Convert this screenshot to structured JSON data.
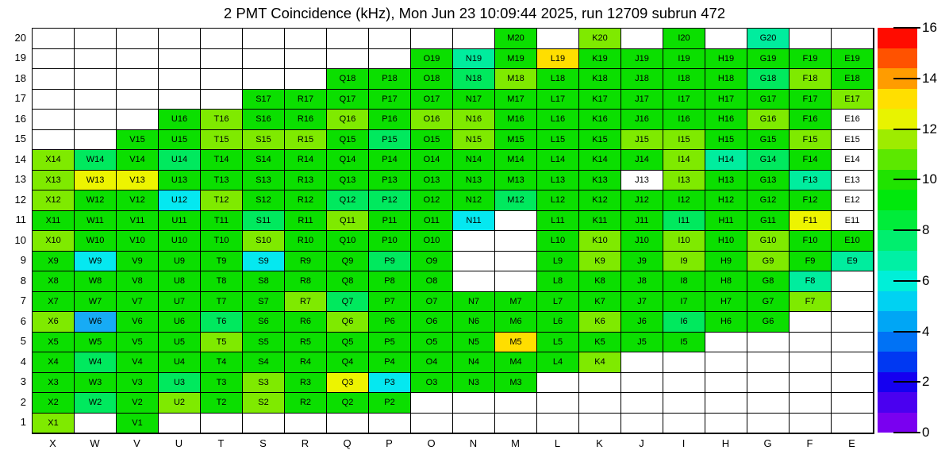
{
  "title": "2 PMT Coincidence (kHz), Mon Jun 23 10:09:44 2025, run 12709 subrun 472",
  "chart_data": {
    "type": "heatmap",
    "title": "2 PMT Coincidence (kHz), Mon Jun 23 10:09:44 2025, run 12709 subrun 472",
    "units": "kHz",
    "x_categories": [
      "X",
      "W",
      "V",
      "U",
      "T",
      "S",
      "R",
      "Q",
      "P",
      "O",
      "N",
      "M",
      "L",
      "K",
      "J",
      "I",
      "H",
      "G",
      "F",
      "E"
    ],
    "y_categories": [
      1,
      2,
      3,
      4,
      5,
      6,
      7,
      8,
      9,
      10,
      11,
      12,
      13,
      14,
      15,
      16,
      17,
      18,
      19,
      20
    ],
    "grid": "on",
    "colorbar": {
      "min": 0,
      "max": 16,
      "ticks": [
        0,
        2,
        4,
        6,
        8,
        10,
        12,
        14,
        16
      ],
      "position": "right",
      "palette_bottom_to_top": [
        "#7A00F0",
        "#4A00F0",
        "#1500F0",
        "#0038F2",
        "#0072F5",
        "#00A6F5",
        "#00D2F2",
        "#00EFD8",
        "#00F0A4",
        "#00EE6E",
        "#00EC3A",
        "#00E80C",
        "#20E300",
        "#5CE800",
        "#9EEC00",
        "#E8F300",
        "#FFDF00",
        "#FF9C00",
        "#FF5200",
        "#FF0C00"
      ]
    },
    "cell_classes": {
      "g": {
        "color": "#0BDF00",
        "approx_value": 9.4
      },
      "yg": {
        "color": "#7FEA00",
        "approx_value": 11.0
      },
      "sg": {
        "color": "#00E95E",
        "approx_value": 8.0
      },
      "mint": {
        "color": "#00ED9E",
        "approx_value": 7.0
      },
      "cy": {
        "color": "#05E8F0",
        "approx_value": 5.4
      },
      "bl": {
        "color": "#17ABF5",
        "approx_value": 4.4
      },
      "y": {
        "color": "#EDF400",
        "approx_value": 11.8
      },
      "gold": {
        "color": "#FFDE00",
        "approx_value": 12.6
      },
      "wl": {
        "color": "#FFFFFF",
        "approx_value": null
      }
    },
    "rows": {
      "20": {
        "M": "g",
        "K": "yg",
        "I": "g",
        "G": "mint"
      },
      "19": {
        "O": "g",
        "N": "mint",
        "M": "g",
        "L": "gold",
        "K": "g",
        "J": "g",
        "I": "g",
        "H": "g",
        "G": "g",
        "F": "g",
        "E": "g"
      },
      "18": {
        "Q": "g",
        "P": "g",
        "O": "g",
        "N": "sg",
        "M": "yg",
        "L": "g",
        "K": "g",
        "J": "g",
        "I": "g",
        "H": "g",
        "G": "sg",
        "F": "yg",
        "E": "g"
      },
      "17": {
        "S": "g",
        "R": "g",
        "Q": "g",
        "P": "g",
        "O": "g",
        "N": "g",
        "M": "g",
        "L": "g",
        "K": "g",
        "J": "g",
        "I": "g",
        "H": "g",
        "G": "g",
        "F": "g",
        "E": "yg"
      },
      "16": {
        "U": "g",
        "T": "yg",
        "S": "g",
        "R": "g",
        "Q": "yg",
        "P": "g",
        "O": "yg",
        "N": "yg",
        "M": "g",
        "L": "g",
        "K": "g",
        "J": "g",
        "I": "g",
        "H": "g",
        "G": "yg",
        "F": "g",
        "E": "wl"
      },
      "15": {
        "V": "g",
        "U": "g",
        "T": "yg",
        "S": "yg",
        "R": "yg",
        "Q": "g",
        "P": "sg",
        "O": "g",
        "N": "yg",
        "M": "g",
        "L": "g",
        "K": "g",
        "J": "yg",
        "I": "yg",
        "H": "g",
        "G": "g",
        "F": "yg",
        "E": "wl"
      },
      "14": {
        "X": "yg",
        "W": "sg",
        "V": "g",
        "U": "sg",
        "T": "g",
        "S": "g",
        "R": "g",
        "Q": "g",
        "P": "g",
        "O": "g",
        "N": "g",
        "M": "g",
        "L": "g",
        "K": "g",
        "J": "g",
        "I": "yg",
        "H": "mint",
        "G": "sg",
        "F": "g",
        "E": "wl"
      },
      "13": {
        "X": "yg",
        "W": "y",
        "V": "y",
        "U": "g",
        "T": "g",
        "S": "g",
        "R": "g",
        "Q": "g",
        "P": "g",
        "O": "g",
        "N": "g",
        "M": "g",
        "L": "g",
        "K": "g",
        "J": "wl",
        "I": "yg",
        "H": "g",
        "G": "g",
        "F": "mint",
        "E": "wl"
      },
      "12": {
        "X": "yg",
        "W": "g",
        "V": "g",
        "U": "cy",
        "T": "yg",
        "S": "g",
        "R": "g",
        "Q": "sg",
        "P": "sg",
        "O": "g",
        "N": "g",
        "M": "sg",
        "L": "g",
        "K": "g",
        "J": "g",
        "I": "g",
        "H": "g",
        "G": "g",
        "F": "g",
        "E": "wl"
      },
      "11": {
        "X": "g",
        "W": "g",
        "V": "g",
        "U": "g",
        "T": "g",
        "S": "sg",
        "R": "g",
        "Q": "yg",
        "P": "g",
        "O": "g",
        "N": "cy",
        "L": "g",
        "K": "g",
        "J": "g",
        "I": "sg",
        "H": "g",
        "G": "g",
        "F": "y",
        "E": "wl"
      },
      "10": {
        "X": "yg",
        "W": "g",
        "V": "g",
        "U": "g",
        "T": "g",
        "S": "yg",
        "R": "g",
        "Q": "g",
        "P": "g",
        "O": "g",
        "L": "g",
        "K": "yg",
        "J": "g",
        "I": "yg",
        "H": "g",
        "G": "yg",
        "F": "g",
        "E": "g"
      },
      "9": {
        "X": "g",
        "W": "cy",
        "V": "g",
        "U": "g",
        "T": "g",
        "S": "cy",
        "R": "g",
        "Q": "g",
        "P": "sg",
        "O": "g",
        "L": "g",
        "K": "yg",
        "J": "g",
        "I": "yg",
        "H": "g",
        "G": "yg",
        "F": "g",
        "E": "mint"
      },
      "8": {
        "X": "g",
        "W": "g",
        "V": "g",
        "U": "g",
        "T": "g",
        "S": "g",
        "R": "g",
        "Q": "g",
        "P": "g",
        "O": "g",
        "L": "g",
        "K": "g",
        "J": "g",
        "I": "g",
        "H": "g",
        "G": "g",
        "F": "mint"
      },
      "7": {
        "X": "g",
        "W": "g",
        "V": "g",
        "U": "g",
        "T": "g",
        "S": "g",
        "R": "yg",
        "Q": "sg",
        "P": "g",
        "O": "g",
        "N": "g",
        "M": "g",
        "L": "g",
        "K": "g",
        "J": "g",
        "I": "g",
        "H": "g",
        "G": "g",
        "F": "yg"
      },
      "6": {
        "X": "yg",
        "W": "bl",
        "V": "g",
        "U": "g",
        "T": "sg",
        "S": "g",
        "R": "g",
        "Q": "yg",
        "P": "g",
        "O": "g",
        "N": "g",
        "M": "g",
        "L": "g",
        "K": "yg",
        "J": "g",
        "I": "sg",
        "H": "g",
        "G": "g"
      },
      "5": {
        "X": "g",
        "W": "g",
        "V": "g",
        "U": "g",
        "T": "yg",
        "S": "g",
        "R": "g",
        "Q": "g",
        "P": "g",
        "O": "g",
        "N": "g",
        "M": "gold",
        "L": "g",
        "K": "g",
        "J": "g",
        "I": "g"
      },
      "4": {
        "X": "g",
        "W": "sg",
        "V": "g",
        "U": "g",
        "T": "g",
        "S": "g",
        "R": "g",
        "Q": "g",
        "P": "g",
        "O": "g",
        "N": "g",
        "M": "g",
        "L": "g",
        "K": "yg"
      },
      "3": {
        "X": "g",
        "W": "g",
        "V": "g",
        "U": "sg",
        "T": "g",
        "S": "yg",
        "R": "g",
        "Q": "y",
        "P": "cy",
        "O": "g",
        "N": "g",
        "M": "g"
      },
      "2": {
        "X": "g",
        "W": "sg",
        "V": "g",
        "U": "yg",
        "T": "g",
        "S": "yg",
        "R": "g",
        "Q": "g",
        "P": "g"
      },
      "1": {
        "X": "yg",
        "V": "g"
      }
    }
  }
}
